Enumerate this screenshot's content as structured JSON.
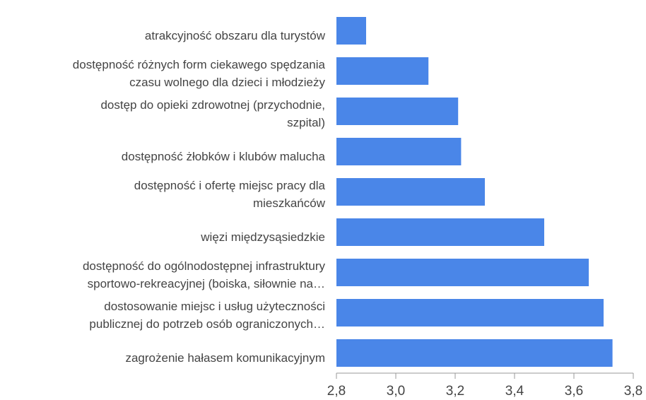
{
  "chart_data": {
    "type": "bar",
    "orientation": "horizontal",
    "categories": [
      [
        "atrakcyjność obszaru dla turystów"
      ],
      [
        "dostępność różnych form ciekawego spędzania",
        "czasu wolnego dla dzieci i młodzieży"
      ],
      [
        "dostęp do opieki zdrowotnej (przychodnie,",
        "szpital)"
      ],
      [
        "dostępność żłobków i klubów malucha"
      ],
      [
        "dostępność i ofertę miejsc pracy dla",
        "mieszkańców"
      ],
      [
        "więzi międzysąsiedzkie"
      ],
      [
        "dostępność do ogólnodostępnej infrastruktury",
        "sportowo-rekreacyjnej (boiska, siłownie na…"
      ],
      [
        "dostosowanie miejsc i usług użyteczności",
        "publicznej do potrzeb osób ograniczonych…"
      ],
      [
        "zagrożenie hałasem komunikacyjnym"
      ]
    ],
    "values": [
      2.9,
      3.11,
      3.21,
      3.22,
      3.3,
      3.5,
      3.65,
      3.7,
      3.73
    ],
    "color": "#4a86e8",
    "xlim": [
      2.8,
      3.8
    ],
    "xticks": [
      {
        "value": 2.8,
        "label": "2,8"
      },
      {
        "value": 3.0,
        "label": "3,0"
      },
      {
        "value": 3.2,
        "label": "3,2"
      },
      {
        "value": 3.4,
        "label": "3,4"
      },
      {
        "value": 3.6,
        "label": "3,6"
      },
      {
        "value": 3.8,
        "label": "3,8"
      }
    ]
  }
}
